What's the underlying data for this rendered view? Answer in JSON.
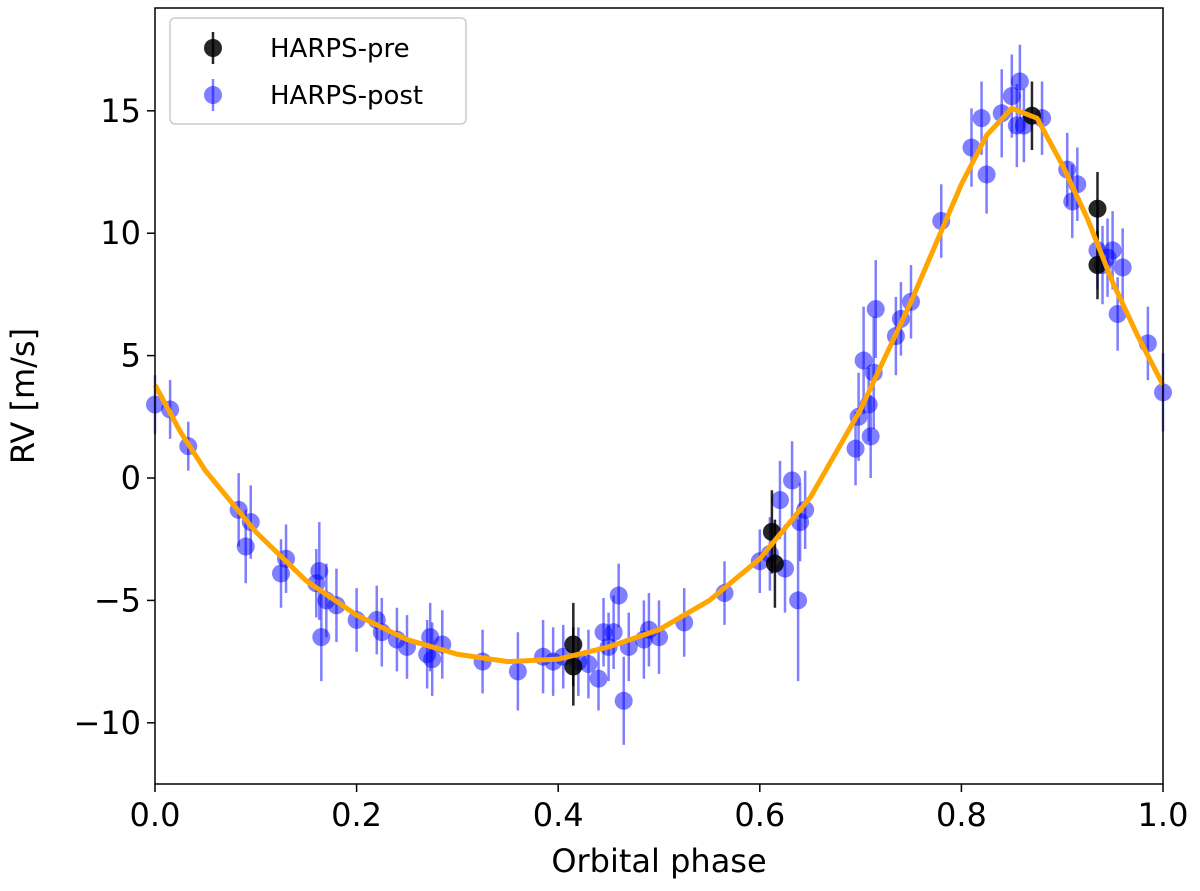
{
  "chart_data": {
    "type": "scatter",
    "xlabel": "Orbital phase",
    "ylabel": "RV [m/s]",
    "xlim": [
      0,
      1
    ],
    "ylim": [
      -12.5,
      19.2
    ],
    "xticks": [
      {
        "value": 0,
        "label": "0.0"
      },
      {
        "value": 0.2,
        "label": "0.2"
      },
      {
        "value": 0.4,
        "label": "0.4"
      },
      {
        "value": 0.6,
        "label": "0.6"
      },
      {
        "value": 0.8,
        "label": "0.8"
      },
      {
        "value": 1,
        "label": "1.0"
      }
    ],
    "yticks": [
      {
        "value": -10,
        "label": "−10"
      },
      {
        "value": -5,
        "label": "−5"
      },
      0,
      5,
      10,
      15
    ],
    "legend": "upper left",
    "series": [
      {
        "style": "line",
        "color": "#ffa500",
        "x": [
          0,
          0.025,
          0.05,
          0.1,
          0.15,
          0.2,
          0.25,
          0.3,
          0.35,
          0.4,
          0.45,
          0.5,
          0.55,
          0.6,
          0.65,
          0.7,
          0.75,
          0.8,
          0.825,
          0.85,
          0.875,
          0.9,
          0.925,
          0.95,
          0.975,
          1
        ],
        "values": [
          3.8,
          1.9,
          0.3,
          -2.2,
          -4.2,
          -5.6,
          -6.6,
          -7.2,
          -7.5,
          -7.4,
          -6.9,
          -6.2,
          -5.0,
          -3.3,
          -0.8,
          2.8,
          7.2,
          12.0,
          14.0,
          15.1,
          14.7,
          12.8,
          10.6,
          8.0,
          5.8,
          3.8
        ]
      },
      {
        "style": "errorbar",
        "name": "HARPS-post",
        "color": "#0000ff",
        "alpha": 0.5,
        "x": [
          0.0,
          0.015,
          0.033,
          0.083,
          0.09,
          0.095,
          0.125,
          0.13,
          0.16,
          0.163,
          0.165,
          0.17,
          0.18,
          0.2,
          0.22,
          0.225,
          0.24,
          0.25,
          0.27,
          0.273,
          0.275,
          0.285,
          0.325,
          0.36,
          0.385,
          0.395,
          0.405,
          0.42,
          0.43,
          0.44,
          0.445,
          0.45,
          0.455,
          0.46,
          0.465,
          0.47,
          0.485,
          0.49,
          0.5,
          0.525,
          0.565,
          0.6,
          0.61,
          0.62,
          0.625,
          0.632,
          0.638,
          0.64,
          0.645,
          0.695,
          0.698,
          0.703,
          0.708,
          0.71,
          0.713,
          0.715,
          0.735,
          0.74,
          0.75,
          0.78,
          0.81,
          0.82,
          0.825,
          0.84,
          0.85,
          0.855,
          0.858,
          0.862,
          0.88,
          0.905,
          0.91,
          0.915,
          0.935,
          0.94,
          0.945,
          0.95,
          0.955,
          0.96,
          0.985,
          1.0
        ],
        "values": [
          3.0,
          2.8,
          1.3,
          -1.3,
          -2.8,
          -1.8,
          -3.9,
          -3.3,
          -4.3,
          -3.8,
          -6.5,
          -5.0,
          -5.2,
          -5.8,
          -5.8,
          -6.3,
          -6.6,
          -6.9,
          -7.2,
          -6.5,
          -7.4,
          -6.8,
          -7.5,
          -7.9,
          -7.3,
          -7.5,
          -7.3,
          -7.5,
          -7.6,
          -8.2,
          -6.3,
          -6.9,
          -6.3,
          -4.8,
          -9.1,
          -6.9,
          -6.6,
          -6.2,
          -6.5,
          -5.9,
          -4.7,
          -3.4,
          -3.1,
          -0.9,
          -3.7,
          -0.1,
          -5.0,
          -1.8,
          -1.3,
          1.2,
          2.5,
          4.8,
          3.0,
          1.7,
          4.3,
          6.9,
          5.8,
          6.5,
          7.2,
          10.5,
          13.5,
          14.7,
          12.4,
          14.9,
          15.6,
          14.4,
          16.2,
          14.4,
          14.7,
          12.6,
          11.3,
          12.0,
          9.3,
          8.7,
          9.0,
          9.3,
          6.7,
          8.6,
          5.5,
          3.5
        ],
        "errors": [
          1.2,
          1.2,
          1.0,
          1.5,
          1.5,
          1.5,
          1.4,
          1.4,
          1.4,
          2.0,
          1.8,
          1.5,
          1.5,
          1.3,
          1.4,
          1.4,
          1.3,
          1.3,
          1.4,
          1.4,
          1.5,
          1.4,
          1.3,
          1.6,
          1.5,
          1.4,
          1.3,
          1.4,
          1.4,
          1.3,
          1.4,
          1.4,
          1.5,
          1.3,
          1.8,
          1.4,
          1.6,
          1.5,
          1.5,
          1.4,
          1.3,
          1.3,
          1.5,
          1.6,
          1.8,
          1.6,
          3.3,
          1.6,
          1.6,
          1.5,
          1.8,
          2.2,
          1.5,
          1.7,
          2.3,
          2.0,
          1.6,
          1.5,
          1.5,
          1.5,
          1.6,
          1.5,
          1.6,
          1.8,
          1.7,
          1.7,
          1.5,
          1.5,
          1.5,
          1.5,
          1.5,
          1.5,
          1.6,
          1.6,
          1.6,
          1.6,
          1.5,
          1.6,
          1.5,
          1.6
        ]
      },
      {
        "style": "errorbar",
        "name": "HARPS-pre",
        "color": "#000000",
        "alpha": 0.85,
        "x": [
          0.415,
          0.415,
          0.612,
          0.615,
          0.87,
          0.935,
          0.935
        ],
        "values": [
          -6.8,
          -7.7,
          -2.2,
          -3.5,
          14.8,
          11.0,
          8.7
        ],
        "errors": [
          1.7,
          1.6,
          1.7,
          1.8,
          1.4,
          1.5,
          1.4
        ]
      }
    ]
  }
}
